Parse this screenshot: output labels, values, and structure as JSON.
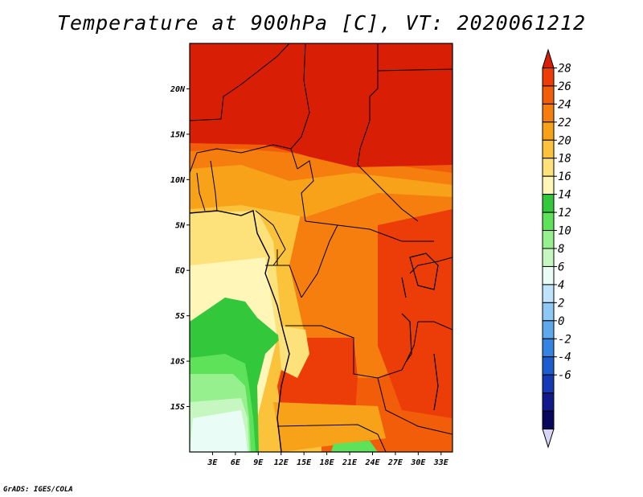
{
  "title": "Temperature at 900hPa [C], VT: 2020061212",
  "credit": "GrADS: IGES/COLA",
  "map": {
    "lon_range": [
      0,
      34.5
    ],
    "lat_range": [
      -20,
      25
    ],
    "lat_ticks": [
      {
        "value": 20,
        "label": "20N"
      },
      {
        "value": 15,
        "label": "15N"
      },
      {
        "value": 10,
        "label": "10N"
      },
      {
        "value": 5,
        "label": "5N"
      },
      {
        "value": 0,
        "label": "EQ"
      },
      {
        "value": -5,
        "label": "5S"
      },
      {
        "value": -10,
        "label": "10S"
      },
      {
        "value": -15,
        "label": "15S"
      }
    ],
    "lon_ticks": [
      {
        "value": 3,
        "label": "3E"
      },
      {
        "value": 6,
        "label": "6E"
      },
      {
        "value": 9,
        "label": "9E"
      },
      {
        "value": 12,
        "label": "12E"
      },
      {
        "value": 15,
        "label": "15E"
      },
      {
        "value": 18,
        "label": "18E"
      },
      {
        "value": 21,
        "label": "21E"
      },
      {
        "value": 24,
        "label": "24E"
      },
      {
        "value": 27,
        "label": "27E"
      },
      {
        "value": 30,
        "label": "30E"
      },
      {
        "value": 33,
        "label": "33E"
      }
    ]
  },
  "colorbar": {
    "labels": [
      "28",
      "26",
      "24",
      "22",
      "20",
      "18",
      "16",
      "14",
      "12",
      "10",
      "8",
      "6",
      "4",
      "2",
      "0",
      "-2",
      "-4",
      "-6"
    ],
    "colors": [
      "#d81e05",
      "#ec3c07",
      "#f25d0a",
      "#f57e0f",
      "#f8a21a",
      "#fbc23c",
      "#fde17a",
      "#fff6b8",
      "#33c83c",
      "#5ee25a",
      "#97f08e",
      "#c7f7c0",
      "#e9fdf6",
      "#bee3fb",
      "#8ec9f6",
      "#5ea8ee",
      "#3485e2",
      "#1c5ed0",
      "#1639b6",
      "#101a8c",
      "#07075c",
      "#d6d6f4"
    ]
  }
}
